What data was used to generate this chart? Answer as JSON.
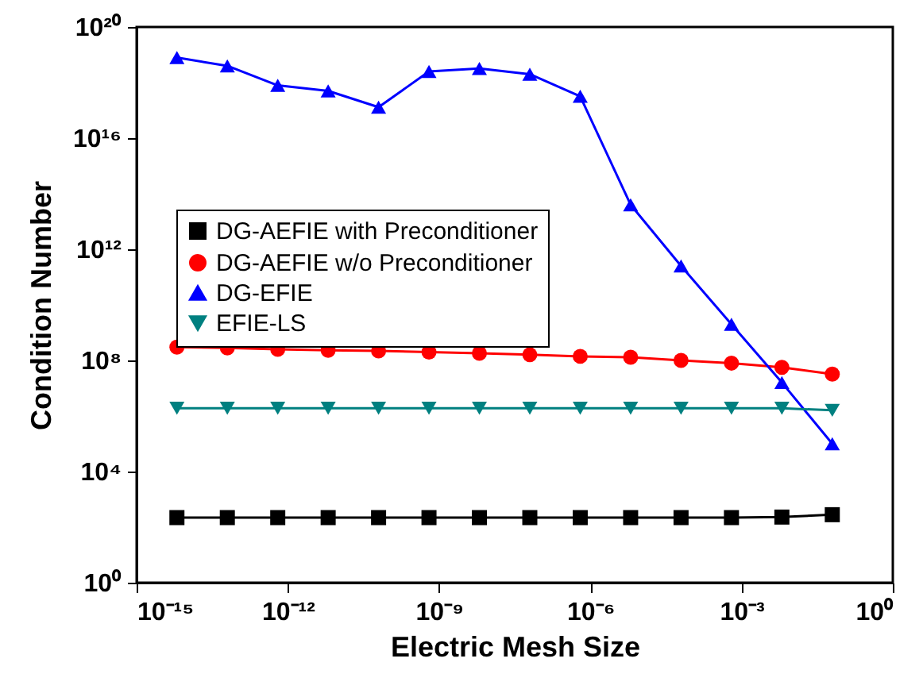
{
  "chart_data": {
    "type": "line",
    "xlabel": "Electric Mesh Size",
    "ylabel": "Condition Number",
    "log": "xy",
    "legend": "left",
    "grid": false,
    "x": [
      6.3e-15,
      6.3e-14,
      6.3e-13,
      6.3e-12,
      6.3e-11,
      6.3e-10,
      6.3e-09,
      6.3e-08,
      6.3e-07,
      6.3e-06,
      6.3e-05,
      0.00063,
      0.0063,
      0.063
    ],
    "xlim": [
      1e-15,
      1
    ],
    "xticks": [
      {
        "value": 1e-15,
        "label": "10⁻¹⁵"
      },
      {
        "value": 1e-12,
        "label": "10⁻¹²"
      },
      {
        "value": 1e-09,
        "label": "10⁻⁹"
      },
      {
        "value": 1e-06,
        "label": "10⁻⁶"
      },
      {
        "value": 0.001,
        "label": "10⁻³"
      },
      {
        "value": 1,
        "label": "10⁰"
      }
    ],
    "ylim": [
      1,
      1e+20
    ],
    "yticks": [
      {
        "value": 1,
        "label": "10⁰"
      },
      {
        "value": 10000.0,
        "label": "10⁴"
      },
      {
        "value": 100000000.0,
        "label": "10⁸"
      },
      {
        "value": 1000000000000.0,
        "label": "10¹²"
      },
      {
        "value": 1e+16,
        "label": "10¹⁶"
      },
      {
        "value": 1e+20,
        "label": "10²⁰"
      }
    ],
    "series": [
      {
        "name": "DG-AEFIE with Preconditioner",
        "color": "#000000",
        "marker": "square",
        "values": [
          220,
          220,
          220,
          220,
          220,
          220,
          220,
          220,
          220,
          220,
          220,
          220,
          230,
          280
        ]
      },
      {
        "name": "DG-AEFIE w/o Preconditioner",
        "color": "#ff0000",
        "marker": "circle",
        "values": [
          300000000.0,
          280000000.0,
          250000000.0,
          230000000.0,
          220000000.0,
          200000000.0,
          180000000.0,
          160000000.0,
          140000000.0,
          130000000.0,
          100000000.0,
          80000000.0,
          56000000.0,
          32000000.0
        ]
      },
      {
        "name": "DG-EFIE",
        "color": "#0000ff",
        "marker": "triangle",
        "values": [
          7.9e+18,
          4e+18,
          7.9e+17,
          5e+17,
          1.3e+17,
          2.5e+18,
          3.2e+18,
          2e+18,
          3.2e+17,
          40000000000000.0,
          250000000000.0,
          2000000000.0,
          16000000.0,
          100000.0
        ]
      },
      {
        "name": "EFIE-LS",
        "color": "#008080",
        "marker": "triangle-down",
        "values": [
          1900000.0,
          1900000.0,
          1900000.0,
          1900000.0,
          1900000.0,
          1900000.0,
          1900000.0,
          1900000.0,
          1900000.0,
          1900000.0,
          1900000.0,
          1900000.0,
          1900000.0,
          1600000.0
        ]
      }
    ]
  }
}
